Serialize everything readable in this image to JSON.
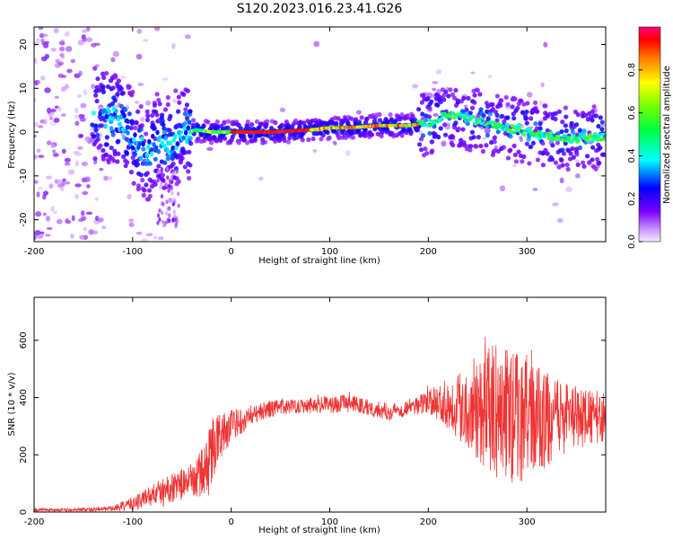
{
  "title": "S120.2023.016.23.41.G26",
  "chart_data": [
    {
      "type": "heatmap",
      "name": "spectrogram",
      "xlabel": "Height of straight line (km)",
      "ylabel": "Frequency (Hz)",
      "xlim": [
        -200,
        380
      ],
      "ylim": [
        -25,
        24
      ],
      "x_ticks": [
        -200,
        -100,
        0,
        100,
        200,
        300
      ],
      "y_ticks": [
        20,
        10,
        0,
        -10,
        -20
      ],
      "colorbar": {
        "label": "Normalized spectral amplitude",
        "range": [
          0.0,
          1.0
        ],
        "ticks": [
          0.0,
          0.2,
          0.4,
          0.6,
          0.8
        ]
      },
      "ridge": {
        "x": [
          -130,
          -110,
          -95,
          -85,
          -75,
          -65,
          -55,
          -45,
          -35,
          -20,
          0,
          40,
          80,
          100,
          120,
          150,
          180,
          200,
          220,
          240,
          260,
          280,
          300,
          320,
          340,
          360,
          380
        ],
        "y": [
          4,
          2,
          -3,
          -5,
          -2,
          -3,
          -1,
          0,
          0.5,
          0,
          0,
          0,
          0.5,
          1,
          1,
          1.5,
          1.5,
          2,
          4,
          3,
          2,
          1,
          0,
          -1,
          -1.5,
          -1.5,
          -1
        ]
      }
    },
    {
      "type": "line",
      "name": "snr",
      "xlabel": "Height of straight line (km)",
      "ylabel": "SNR (10 * v/v)",
      "xlim": [
        -200,
        380
      ],
      "ylim": [
        0,
        750
      ],
      "x_ticks": [
        -200,
        -100,
        0,
        100,
        200,
        300
      ],
      "y_ticks": [
        0,
        200,
        400,
        600
      ],
      "color": "#ee3333",
      "envelope": {
        "x": [
          -200,
          -150,
          -120,
          -100,
          -80,
          -60,
          -40,
          -25,
          -20,
          -10,
          0,
          20,
          40,
          60,
          80,
          100,
          120,
          140,
          160,
          180,
          200,
          220,
          240,
          260,
          280,
          300,
          320,
          340,
          360,
          380
        ],
        "mean": [
          8,
          8,
          12,
          30,
          60,
          85,
          110,
          150,
          220,
          270,
          300,
          340,
          360,
          370,
          375,
          375,
          380,
          365,
          350,
          365,
          385,
          380,
          370,
          360,
          340,
          330,
          320,
          330,
          330,
          330
        ],
        "spread": [
          6,
          6,
          10,
          25,
          40,
          50,
          60,
          100,
          120,
          80,
          60,
          35,
          30,
          25,
          30,
          30,
          30,
          30,
          30,
          30,
          40,
          90,
          150,
          220,
          250,
          220,
          170,
          120,
          100,
          90
        ]
      }
    }
  ]
}
